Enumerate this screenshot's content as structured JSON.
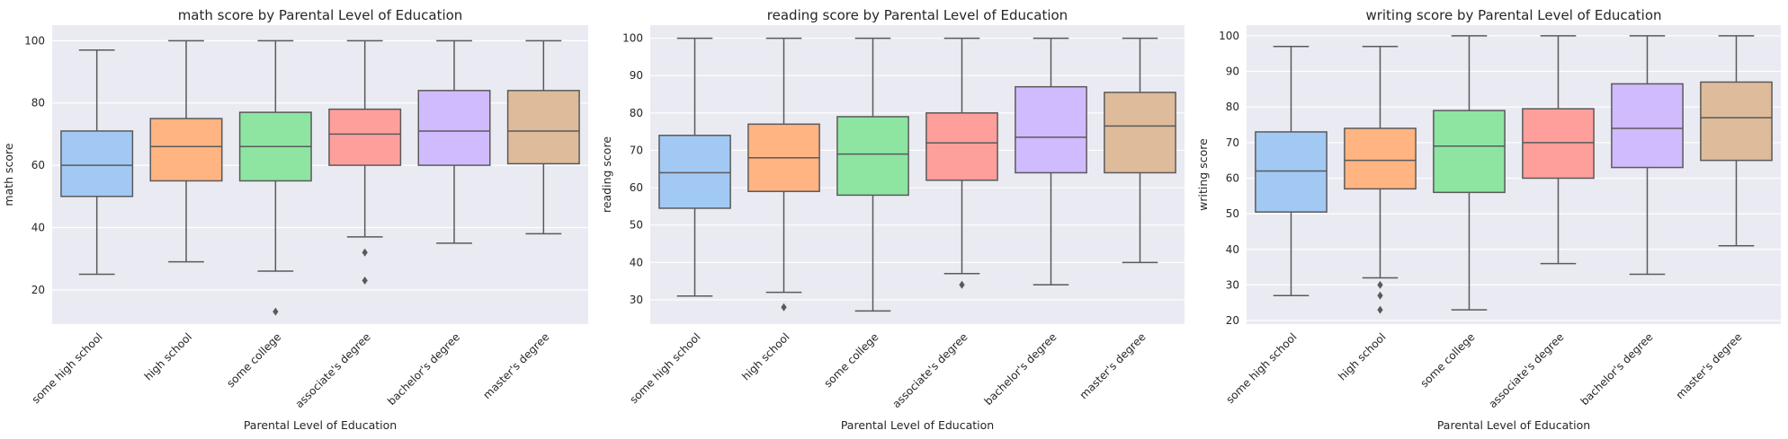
{
  "chart_data": [
    {
      "type": "box",
      "title": "math score by Parental Level of Education",
      "xlabel": "Parental Level of Education",
      "ylabel": "math score",
      "categories": [
        "some high school",
        "high school",
        "some college",
        "associate's degree",
        "bachelor's degree",
        "master's degree"
      ],
      "ylim": [
        9,
        105
      ],
      "yticks": [
        20,
        40,
        60,
        80,
        100
      ],
      "boxes": [
        {
          "whislo": 25,
          "q1": 50,
          "med": 60,
          "q3": 71,
          "whishi": 97,
          "fliers": []
        },
        {
          "whislo": 29,
          "q1": 55,
          "med": 66,
          "q3": 75,
          "whishi": 100,
          "fliers": []
        },
        {
          "whislo": 26,
          "q1": 55,
          "med": 66,
          "q3": 77,
          "whishi": 100,
          "fliers": [
            13
          ]
        },
        {
          "whislo": 37,
          "q1": 60,
          "med": 70,
          "q3": 78,
          "whishi": 100,
          "fliers": [
            32,
            23
          ]
        },
        {
          "whislo": 35,
          "q1": 60,
          "med": 71,
          "q3": 84,
          "whishi": 100,
          "fliers": []
        },
        {
          "whislo": 38,
          "q1": 60.5,
          "med": 71,
          "q3": 84,
          "whishi": 100,
          "fliers": []
        }
      ]
    },
    {
      "type": "box",
      "title": "reading score by Parental Level of Education",
      "xlabel": "Parental Level of Education",
      "ylabel": "reading score",
      "categories": [
        "some high school",
        "high school",
        "some college",
        "associate's degree",
        "bachelor's degree",
        "master's degree"
      ],
      "ylim": [
        23.5,
        103.5
      ],
      "yticks": [
        30,
        40,
        50,
        60,
        70,
        80,
        90,
        100
      ],
      "boxes": [
        {
          "whislo": 31,
          "q1": 54.5,
          "med": 64,
          "q3": 74,
          "whishi": 100,
          "fliers": []
        },
        {
          "whislo": 32,
          "q1": 59,
          "med": 68,
          "q3": 77,
          "whishi": 100,
          "fliers": [
            28
          ]
        },
        {
          "whislo": 27,
          "q1": 58,
          "med": 69,
          "q3": 79,
          "whishi": 100,
          "fliers": []
        },
        {
          "whislo": 37,
          "q1": 62,
          "med": 72,
          "q3": 80,
          "whishi": 100,
          "fliers": [
            34
          ]
        },
        {
          "whislo": 34,
          "q1": 64,
          "med": 73.5,
          "q3": 87,
          "whishi": 100,
          "fliers": []
        },
        {
          "whislo": 40,
          "q1": 64,
          "med": 76.5,
          "q3": 85.5,
          "whishi": 100,
          "fliers": []
        }
      ]
    },
    {
      "type": "box",
      "title": "writing score by Parental Level of Education",
      "xlabel": "Parental Level of Education",
      "ylabel": "writing score",
      "categories": [
        "some high school",
        "high school",
        "some college",
        "associate's degree",
        "bachelor's degree",
        "master's degree"
      ],
      "ylim": [
        19,
        103
      ],
      "yticks": [
        20,
        30,
        40,
        50,
        60,
        70,
        80,
        90,
        100
      ],
      "boxes": [
        {
          "whislo": 27,
          "q1": 50.5,
          "med": 62,
          "q3": 73,
          "whishi": 97,
          "fliers": []
        },
        {
          "whislo": 32,
          "q1": 57,
          "med": 65,
          "q3": 74,
          "whishi": 97,
          "fliers": [
            30,
            27,
            23
          ]
        },
        {
          "whislo": 23,
          "q1": 56,
          "med": 69,
          "q3": 79,
          "whishi": 100,
          "fliers": []
        },
        {
          "whislo": 36,
          "q1": 60,
          "med": 70,
          "q3": 79.5,
          "whishi": 100,
          "fliers": []
        },
        {
          "whislo": 33,
          "q1": 63,
          "med": 74,
          "q3": 86.5,
          "whishi": 100,
          "fliers": []
        },
        {
          "whislo": 41,
          "q1": 65,
          "med": 77,
          "q3": 87,
          "whishi": 100,
          "fliers": []
        }
      ]
    }
  ],
  "colors": {
    "plot_background": "#eaeaf2",
    "grid": "#ffffff",
    "line": "#5a5a5a",
    "boxes": [
      "#a1c9f4",
      "#ffb482",
      "#8de5a1",
      "#ff9f9b",
      "#d0bbff",
      "#debb9b"
    ]
  }
}
